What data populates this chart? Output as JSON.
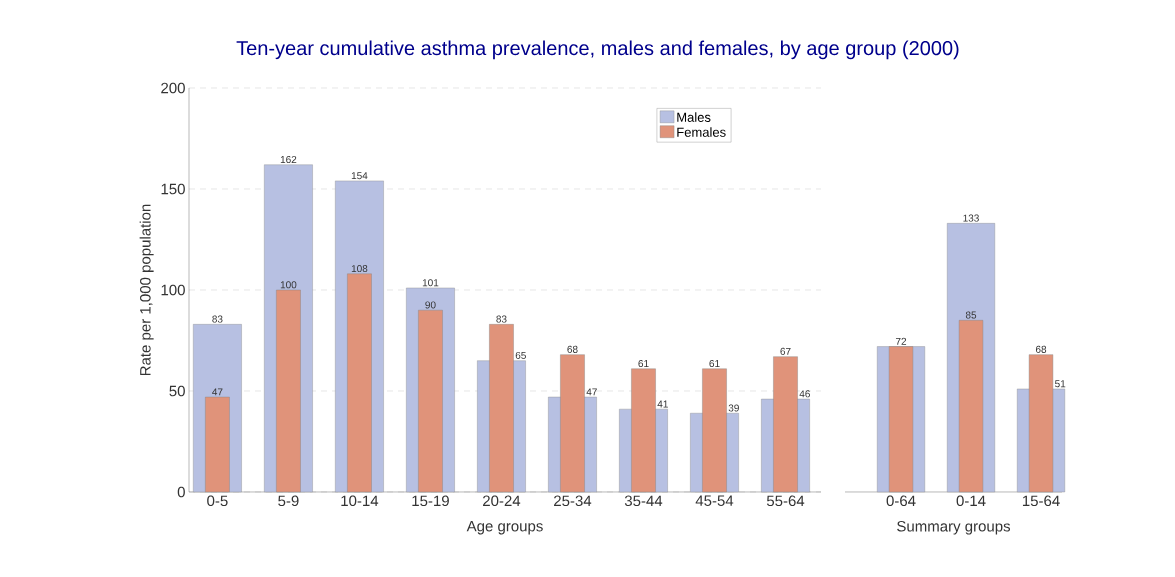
{
  "chart_data": [
    {
      "type": "bar",
      "title": "Ten-year cumulative asthma prevalence, males and females, by age group (2000)",
      "xlabel": "Age groups",
      "ylabel": "Rate per 1,000 population",
      "categories": [
        "0-5",
        "5-9",
        "10-14",
        "15-19",
        "20-24",
        "25-34",
        "35-44",
        "45-54",
        "55-64"
      ],
      "series": [
        {
          "name": "Males",
          "color": "#b7c0e2",
          "values": [
            83,
            162,
            154,
            101,
            65,
            47,
            41,
            39,
            46
          ],
          "value_labels": [
            "83",
            "162",
            "154",
            "101",
            "65",
            "47",
            "41",
            "39",
            "46"
          ]
        },
        {
          "name": "Females",
          "color": "#e0937a",
          "values": [
            47,
            100,
            108,
            90,
            83,
            68,
            61,
            61,
            67
          ],
          "value_labels": [
            "47",
            "100",
            "108",
            "90",
            "83",
            "68",
            "61",
            "61",
            "67"
          ]
        }
      ],
      "ylim": [
        0,
        200
      ],
      "yticks": [
        0,
        50,
        100,
        150,
        200
      ],
      "grid": "y",
      "legend": "top right"
    },
    {
      "type": "bar",
      "xlabel": "Summary groups",
      "categories": [
        "0-64",
        "0-14",
        "15-64"
      ],
      "series": [
        {
          "color": "#b7c0e2",
          "values": [
            72,
            133,
            51
          ],
          "value_labels": [
            null,
            "133",
            "51"
          ]
        },
        {
          "color": "#e0937a",
          "values": [
            72,
            85,
            68
          ],
          "value_labels": [
            "72",
            "85",
            "68"
          ]
        }
      ],
      "ylim": [
        0,
        200
      ],
      "yticks": [
        0,
        50,
        100,
        150,
        200
      ],
      "grid": "y",
      "tick_labels": "x"
    }
  ]
}
